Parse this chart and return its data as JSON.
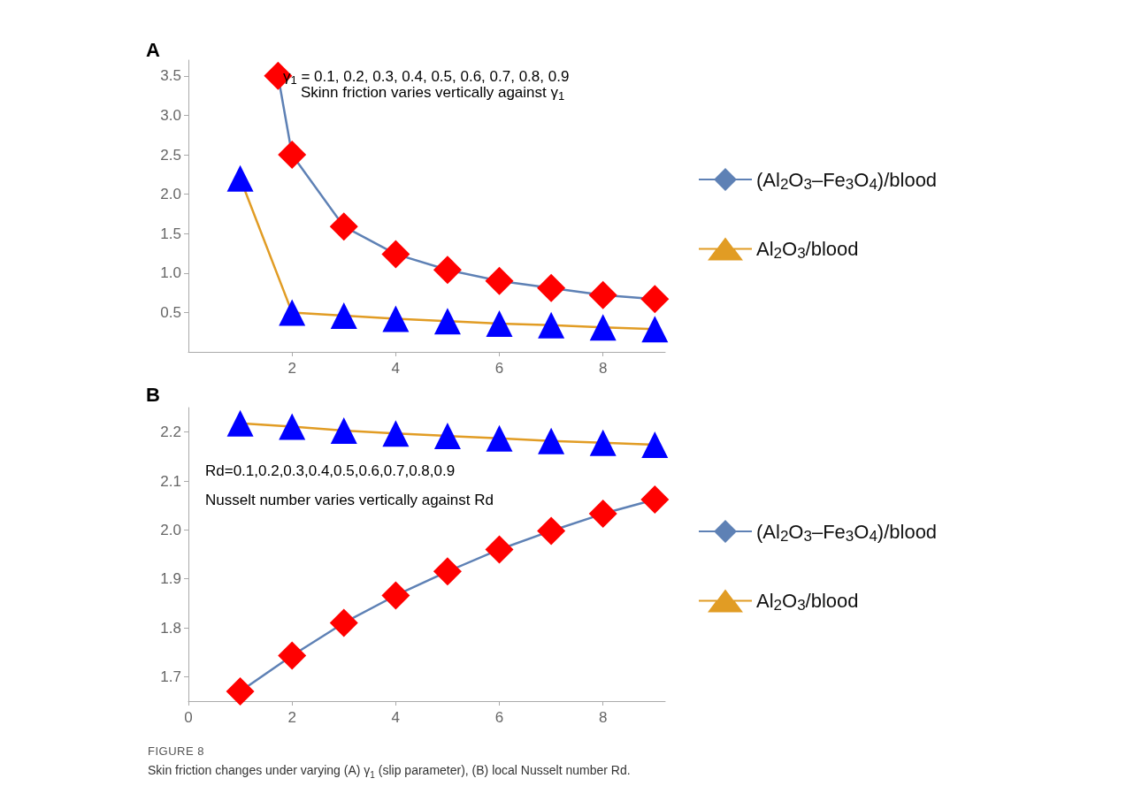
{
  "chart_data": [
    {
      "type": "line",
      "title": "A",
      "x": [
        1,
        2,
        3,
        4,
        5,
        6,
        7,
        8,
        9
      ],
      "xlim": [
        0,
        9.2
      ],
      "xticks": [
        2,
        4,
        6,
        8
      ],
      "ylim": [
        0,
        3.7
      ],
      "yticks": [
        0.5,
        {
          "value": 1,
          "label": "1.0"
        },
        1.5,
        {
          "value": 2,
          "label": "2.0"
        },
        2.5,
        {
          "value": 3,
          "label": "3.0"
        },
        3.5
      ],
      "grid": false,
      "legend": "right",
      "annotations": [
        "γ$_{1}$ = 0.1, 0.2, 0.3, 0.4, 0.5, 0.6, 0.7, 0.8, 0.9",
        "Skinn friction varies vertically against γ$_{1}$"
      ],
      "series": [
        {
          "name": "(Al$_{2}$O$_{3}$–Fe$_{3}$O$_{4}$)/blood",
          "color": "#5e81b5",
          "marker": "diamond",
          "colors": [
            "#ff0000",
            "#ff0000",
            "#ff0000",
            "#ff0000",
            "#ff0000",
            "#ff0000",
            "#ff0000",
            "#ff0000",
            "#ff0000"
          ],
          "x": [
            1.73,
            2,
            3,
            4,
            5,
            6,
            7,
            8,
            9
          ],
          "values": [
            3.5,
            2.5,
            1.59,
            1.24,
            1.04,
            0.9,
            0.81,
            0.72,
            0.67
          ]
        },
        {
          "name": "Al$_{2}$O$_{3}$/blood",
          "color": "#e19c24",
          "marker": "triangle",
          "colors": [
            "#0000ff",
            "#0000ff",
            "#0000ff",
            "#0000ff",
            "#0000ff",
            "#0000ff",
            "#0000ff",
            "#0000ff",
            "#0000ff"
          ],
          "values": [
            2.2,
            0.5,
            0.46,
            0.42,
            0.39,
            0.36,
            0.34,
            0.31,
            0.29
          ]
        }
      ]
    },
    {
      "type": "line",
      "title": "B",
      "x": [
        1,
        2,
        3,
        4,
        5,
        6,
        7,
        8,
        9
      ],
      "xlim": [
        0,
        9.2
      ],
      "xticks": [
        0,
        2,
        4,
        6,
        8
      ],
      "ylim": [
        1.65,
        2.25
      ],
      "yticks": [
        1.7,
        1.8,
        1.9,
        {
          "value": 2,
          "label": "2.0"
        },
        2.1,
        2.2
      ],
      "grid": false,
      "legend": "right",
      "annotations": [
        "Rd=0.1,0.2,0.3,0.4,0.5,0.6,0.7,0.8,0.9",
        "Nusselt number varies vertically against Rd",
        "FIGURE 8",
        "Skin friction changes under varying (A) γ$_{1}$ (slip parameter), (B) local Nusselt number Rd."
      ],
      "series": [
        {
          "name": "(Al$_{2}$O$_{3}$–Fe$_{3}$O$_{4}$)/blood",
          "color": "#5e81b5",
          "marker": "diamond",
          "colors": [
            "#ff0000",
            "#ff0000",
            "#ff0000",
            "#ff0000",
            "#ff0000",
            "#ff0000",
            "#ff0000",
            "#ff0000",
            "#ff0000"
          ],
          "values": [
            1.67,
            1.743,
            1.81,
            1.866,
            1.915,
            1.96,
            1.998,
            2.033,
            2.062
          ]
        },
        {
          "name": "Al$_{2}$O$_{3}$/blood",
          "color": "#e19c24",
          "marker": "triangle",
          "colors": [
            "#0000ff",
            "#0000ff",
            "#0000ff",
            "#0000ff",
            "#0000ff",
            "#0000ff",
            "#0000ff",
            "#0000ff",
            "#0000ff"
          ],
          "values": [
            2.218,
            2.211,
            2.203,
            2.197,
            2.192,
            2.187,
            2.182,
            2.178,
            2.174
          ]
        }
      ]
    }
  ]
}
